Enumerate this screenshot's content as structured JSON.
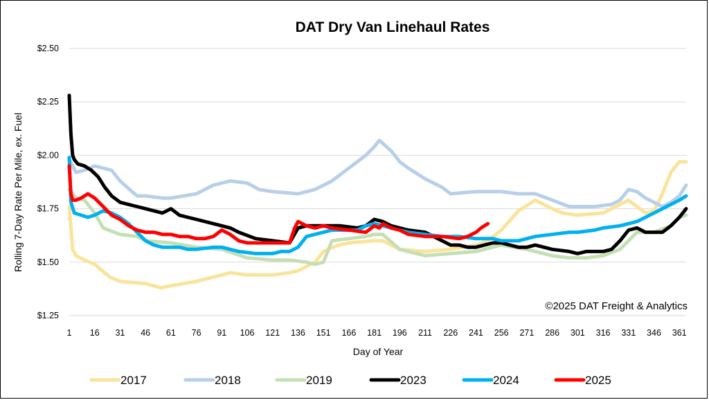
{
  "chart_data": {
    "type": "line",
    "title": "DAT Dry Van Linehaul Rates",
    "xlabel": "Day of Year",
    "ylabel": "Rolling 7-Day Rate Per Mile, ex. Fuel",
    "annotation": "©2025 DAT Freight & Analytics",
    "xlim": [
      1,
      365
    ],
    "ylim": [
      1.25,
      2.5
    ],
    "y_ticks": [
      1.25,
      1.5,
      1.75,
      2.0,
      2.25,
      2.5
    ],
    "y_tick_labels": [
      "$1.25",
      "$1.50",
      "$1.75",
      "$2.00",
      "$2.25",
      "$2.50"
    ],
    "x_ticks": [
      1,
      16,
      31,
      46,
      61,
      76,
      91,
      106,
      121,
      136,
      151,
      166,
      181,
      196,
      211,
      226,
      241,
      256,
      271,
      286,
      301,
      316,
      331,
      346,
      361
    ],
    "grid": "horizontal",
    "legend_position": "bottom",
    "series": [
      {
        "name": "2017",
        "color": "#fae39a",
        "x": [
          1,
          3,
          5,
          10,
          16,
          25,
          31,
          46,
          55,
          61,
          76,
          91,
          96,
          106,
          121,
          131,
          136,
          146,
          151,
          160,
          166,
          181,
          186,
          196,
          211,
          226,
          241,
          248,
          256,
          266,
          276,
          286,
          292,
          301,
          316,
          331,
          341,
          346,
          351,
          356,
          361,
          365
        ],
        "y": [
          1.76,
          1.56,
          1.53,
          1.51,
          1.49,
          1.43,
          1.41,
          1.4,
          1.38,
          1.39,
          1.41,
          1.44,
          1.45,
          1.44,
          1.44,
          1.45,
          1.46,
          1.5,
          1.55,
          1.58,
          1.59,
          1.6,
          1.6,
          1.56,
          1.55,
          1.56,
          1.58,
          1.6,
          1.65,
          1.74,
          1.79,
          1.75,
          1.73,
          1.72,
          1.73,
          1.79,
          1.73,
          1.74,
          1.82,
          1.92,
          1.97,
          1.97
        ]
      },
      {
        "name": "2018",
        "color": "#b8cfe8",
        "x": [
          1,
          5,
          10,
          16,
          26,
          31,
          41,
          46,
          56,
          61,
          76,
          86,
          91,
          96,
          106,
          113,
          121,
          136,
          146,
          151,
          156,
          166,
          176,
          181,
          184,
          191,
          196,
          201,
          211,
          221,
          226,
          241,
          256,
          266,
          276,
          286,
          296,
          301,
          311,
          321,
          326,
          331,
          336,
          341,
          346,
          351,
          356,
          361,
          365
        ],
        "y": [
          1.98,
          1.92,
          1.93,
          1.95,
          1.93,
          1.88,
          1.81,
          1.81,
          1.8,
          1.8,
          1.82,
          1.86,
          1.87,
          1.88,
          1.87,
          1.84,
          1.83,
          1.82,
          1.84,
          1.86,
          1.88,
          1.94,
          2.0,
          2.04,
          2.07,
          2.02,
          1.97,
          1.94,
          1.89,
          1.85,
          1.82,
          1.83,
          1.83,
          1.82,
          1.82,
          1.79,
          1.76,
          1.76,
          1.76,
          1.77,
          1.79,
          1.84,
          1.83,
          1.8,
          1.78,
          1.76,
          1.78,
          1.81,
          1.86
        ]
      },
      {
        "name": "2019",
        "color": "#c5dfb4",
        "x": [
          1,
          5,
          10,
          16,
          21,
          31,
          41,
          46,
          61,
          76,
          91,
          106,
          121,
          131,
          141,
          146,
          151,
          156,
          166,
          176,
          181,
          186,
          196,
          206,
          211,
          226,
          241,
          256,
          271,
          281,
          286,
          296,
          306,
          316,
          326,
          336,
          346,
          356,
          361,
          365
        ],
        "y": [
          1.84,
          1.8,
          1.79,
          1.73,
          1.66,
          1.63,
          1.62,
          1.6,
          1.59,
          1.57,
          1.56,
          1.52,
          1.51,
          1.51,
          1.5,
          1.49,
          1.5,
          1.6,
          1.61,
          1.62,
          1.63,
          1.63,
          1.56,
          1.54,
          1.53,
          1.54,
          1.55,
          1.58,
          1.56,
          1.54,
          1.53,
          1.52,
          1.52,
          1.53,
          1.56,
          1.64,
          1.64,
          1.67,
          1.71,
          1.72
        ]
      },
      {
        "name": "2023",
        "color": "#000000",
        "x": [
          1,
          2,
          3,
          4,
          6,
          10,
          14,
          18,
          22,
          26,
          31,
          36,
          41,
          46,
          51,
          56,
          61,
          66,
          71,
          76,
          86,
          91,
          96,
          101,
          111,
          121,
          131,
          136,
          141,
          151,
          161,
          171,
          176,
          181,
          186,
          191,
          196,
          201,
          211,
          221,
          226,
          231,
          236,
          241,
          246,
          251,
          256,
          266,
          271,
          276,
          286,
          296,
          301,
          306,
          316,
          321,
          326,
          331,
          336,
          341,
          351,
          356,
          361,
          365
        ],
        "y": [
          2.28,
          2.1,
          2.0,
          1.98,
          1.96,
          1.95,
          1.93,
          1.9,
          1.85,
          1.81,
          1.78,
          1.77,
          1.76,
          1.75,
          1.74,
          1.73,
          1.75,
          1.72,
          1.71,
          1.7,
          1.68,
          1.67,
          1.66,
          1.64,
          1.61,
          1.6,
          1.59,
          1.66,
          1.67,
          1.67,
          1.67,
          1.66,
          1.67,
          1.7,
          1.69,
          1.67,
          1.66,
          1.65,
          1.64,
          1.6,
          1.58,
          1.58,
          1.57,
          1.57,
          1.58,
          1.59,
          1.59,
          1.57,
          1.57,
          1.58,
          1.56,
          1.55,
          1.54,
          1.55,
          1.55,
          1.56,
          1.6,
          1.65,
          1.66,
          1.64,
          1.64,
          1.67,
          1.71,
          1.75
        ]
      },
      {
        "name": "2024",
        "color": "#00b0f0",
        "x": [
          1,
          2,
          4,
          8,
          12,
          16,
          21,
          26,
          31,
          36,
          41,
          46,
          51,
          56,
          61,
          66,
          71,
          76,
          86,
          91,
          96,
          101,
          111,
          121,
          126,
          131,
          136,
          141,
          151,
          156,
          161,
          166,
          171,
          176,
          181,
          186,
          191,
          196,
          201,
          211,
          221,
          231,
          241,
          251,
          256,
          266,
          276,
          286,
          296,
          301,
          311,
          316,
          326,
          331,
          336,
          341,
          346,
          351,
          356,
          361,
          365
        ],
        "y": [
          1.99,
          1.78,
          1.73,
          1.72,
          1.71,
          1.72,
          1.74,
          1.73,
          1.71,
          1.68,
          1.64,
          1.6,
          1.58,
          1.57,
          1.57,
          1.57,
          1.56,
          1.56,
          1.57,
          1.57,
          1.56,
          1.55,
          1.54,
          1.54,
          1.55,
          1.55,
          1.57,
          1.62,
          1.64,
          1.65,
          1.65,
          1.65,
          1.65,
          1.67,
          1.68,
          1.67,
          1.66,
          1.65,
          1.64,
          1.63,
          1.62,
          1.62,
          1.61,
          1.61,
          1.6,
          1.6,
          1.62,
          1.63,
          1.64,
          1.64,
          1.65,
          1.66,
          1.67,
          1.68,
          1.69,
          1.71,
          1.73,
          1.75,
          1.77,
          1.79,
          1.81
        ]
      },
      {
        "name": "2025",
        "color": "#ff0000",
        "x": [
          1,
          2,
          3,
          5,
          8,
          12,
          16,
          21,
          26,
          31,
          36,
          41,
          46,
          51,
          56,
          61,
          66,
          71,
          76,
          81,
          86,
          91,
          96,
          101,
          106,
          111,
          116,
          121,
          126,
          131,
          134,
          136,
          141,
          146,
          151,
          156,
          166,
          176,
          181,
          184,
          186,
          191,
          196,
          201,
          211,
          221,
          231,
          236,
          241,
          244,
          246,
          248
        ],
        "y": [
          1.95,
          1.82,
          1.79,
          1.79,
          1.8,
          1.82,
          1.8,
          1.76,
          1.72,
          1.7,
          1.67,
          1.65,
          1.64,
          1.64,
          1.63,
          1.63,
          1.62,
          1.62,
          1.61,
          1.61,
          1.62,
          1.65,
          1.63,
          1.6,
          1.59,
          1.59,
          1.59,
          1.59,
          1.59,
          1.59,
          1.66,
          1.69,
          1.67,
          1.66,
          1.67,
          1.66,
          1.65,
          1.64,
          1.67,
          1.66,
          1.68,
          1.66,
          1.65,
          1.63,
          1.62,
          1.62,
          1.61,
          1.62,
          1.64,
          1.66,
          1.67,
          1.68
        ]
      }
    ]
  }
}
